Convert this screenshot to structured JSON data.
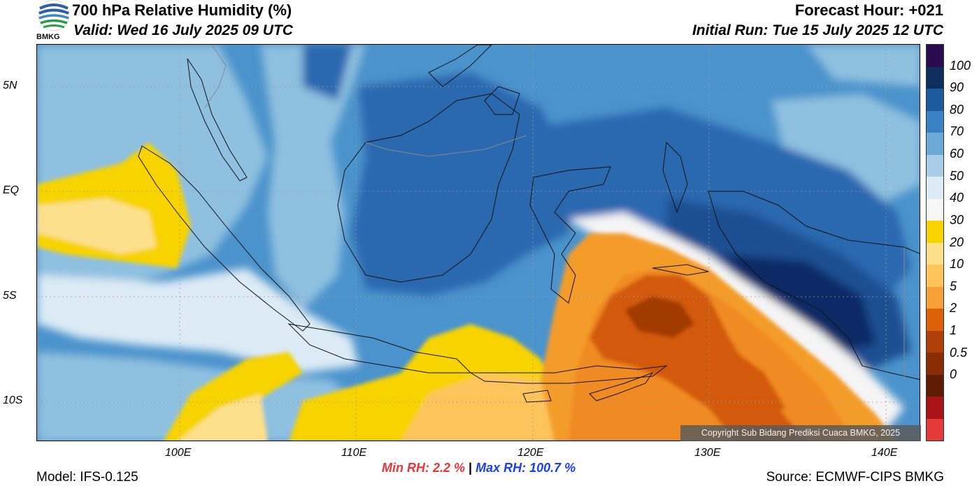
{
  "header": {
    "title": "700 hPa Relative Humidity (%)",
    "valid": "Valid: Wed 16 July 2025 09 UTC",
    "forecast_hour": "Forecast Hour: +021",
    "initial_run": "Initial Run: Tue 15 July 2025 12 UTC",
    "logo_text": "BMKG"
  },
  "map": {
    "lat_labels": [
      "5N",
      "EQ",
      "5S",
      "10S"
    ],
    "lon_labels": [
      "100E",
      "110E",
      "120E",
      "130E",
      "140E"
    ],
    "copyright": "Copyright Sub Bidang Prediksi Cuaca BMKG, 2025",
    "colors": {
      "very_humid": "#0d2c66",
      "humid": "#2c67b0",
      "moist": "#4b93cc",
      "mid": "#8fc0e0",
      "light": "#c9e1f0",
      "white": "#f5f5f5",
      "yellow": "#f7d300",
      "light_orange": "#fdc45c",
      "orange": "#f49c2c",
      "dark_orange": "#d35a08",
      "brown": "#a13a05"
    }
  },
  "colorbar": {
    "labels": [
      "100",
      "90",
      "80",
      "70",
      "60",
      "50",
      "40",
      "30",
      "20",
      "10",
      "5",
      "2",
      "1",
      "0.5",
      "0"
    ],
    "colors": [
      "#2b0a4f",
      "#0f2e5e",
      "#1d5a9e",
      "#3b82c4",
      "#6da9d6",
      "#a9cde6",
      "#dcebf5",
      "#f7f7f7",
      "#f7d300",
      "#fde08c",
      "#fcc45a",
      "#f7a03a",
      "#dd6109",
      "#b0400a",
      "#8a2d05",
      "#5e1b05",
      "#a8141a",
      "#e43a3a"
    ]
  },
  "stats": {
    "min_label": "Min RH:",
    "min_value": "2.2 %",
    "separator": "|",
    "max_label": "Max RH: 100.7 %"
  },
  "footer": {
    "model": "Model: IFS-0.125",
    "source": "Source: ECMWF-CIPS BMKG"
  }
}
